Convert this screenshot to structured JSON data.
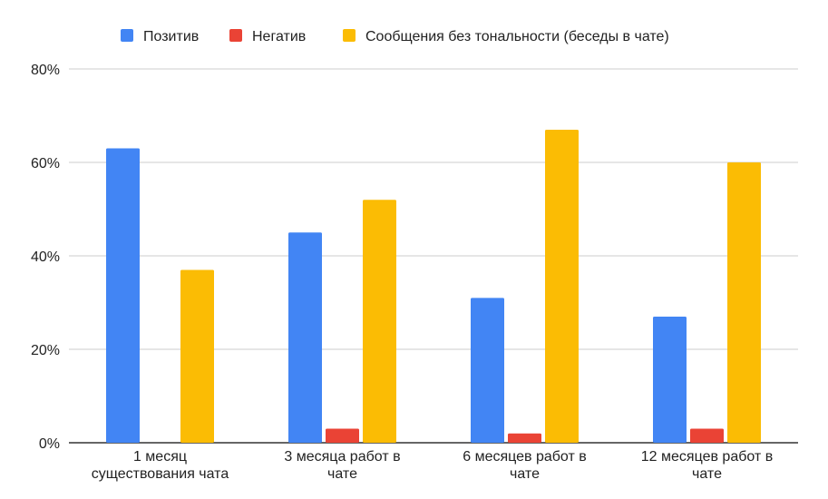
{
  "chart_data": {
    "type": "bar",
    "categories": [
      [
        "1 месяц",
        "существования чата"
      ],
      [
        "3 месяца работ в",
        "чате"
      ],
      [
        "6 месяцев работ в",
        "чате"
      ],
      [
        "12 месяцев работ в",
        "чате"
      ]
    ],
    "series": [
      {
        "name": "Позитив",
        "color": "#4285F4",
        "values": [
          63,
          45,
          31,
          27
        ]
      },
      {
        "name": "Негатив",
        "color": "#EA4335",
        "values": [
          0,
          3,
          2,
          3
        ]
      },
      {
        "name": "Сообщения без тональности (беседы в чате)",
        "color": "#FBBC04",
        "values": [
          37,
          52,
          67,
          60
        ]
      }
    ],
    "ylim": [
      0,
      80
    ],
    "yticks": [
      "0%",
      "20%",
      "40%",
      "60%",
      "80%"
    ],
    "grid": true,
    "legend": "top"
  }
}
